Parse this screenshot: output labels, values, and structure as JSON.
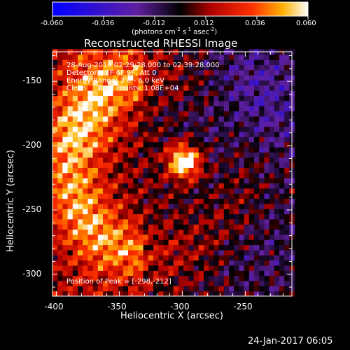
{
  "chart_data": {
    "type": "heatmap",
    "title": "Reconstructed RHESSI Image",
    "xlabel": "Heliocentric X (arcsec)",
    "ylabel": "Heliocentric Y (arcsec)",
    "xlim": [
      -403,
      -213
    ],
    "ylim": [
      -317,
      -127
    ],
    "x_ticks": [
      -400,
      -350,
      -300,
      -250
    ],
    "y_ticks": [
      -300,
      -250,
      -200,
      -150
    ],
    "colorbar": {
      "min": -0.06,
      "max": 0.06,
      "ticks": [
        "-0.060",
        "-0.036",
        "-0.012",
        "0.012",
        "0.036",
        "0.060"
      ],
      "label_text": "(photons cm",
      "label_exp1": "-2",
      "label_mid": " s",
      "label_exp2": "-1",
      "label_mid2": " asec",
      "label_exp3": "-2",
      "label_end": ")"
    },
    "annotations": [
      "28-Aug-2014 02:29:28.000 to 02:39:28.000",
      "Detectors: 3F 6F 9F, Att 0",
      "Energy Range: 3.0 - 6.0 keV",
      "Clean     Total counts: 1.08E+04"
    ],
    "peak_label": "Position of Peak = [-298,-212]",
    "peak": {
      "x": -298,
      "y": -212,
      "value": 0.06
    },
    "grid": false,
    "colors": {
      "background": "#000000",
      "text": "#ffffff"
    }
  },
  "footer": {
    "date": "24-Jan-2017 06:05"
  }
}
